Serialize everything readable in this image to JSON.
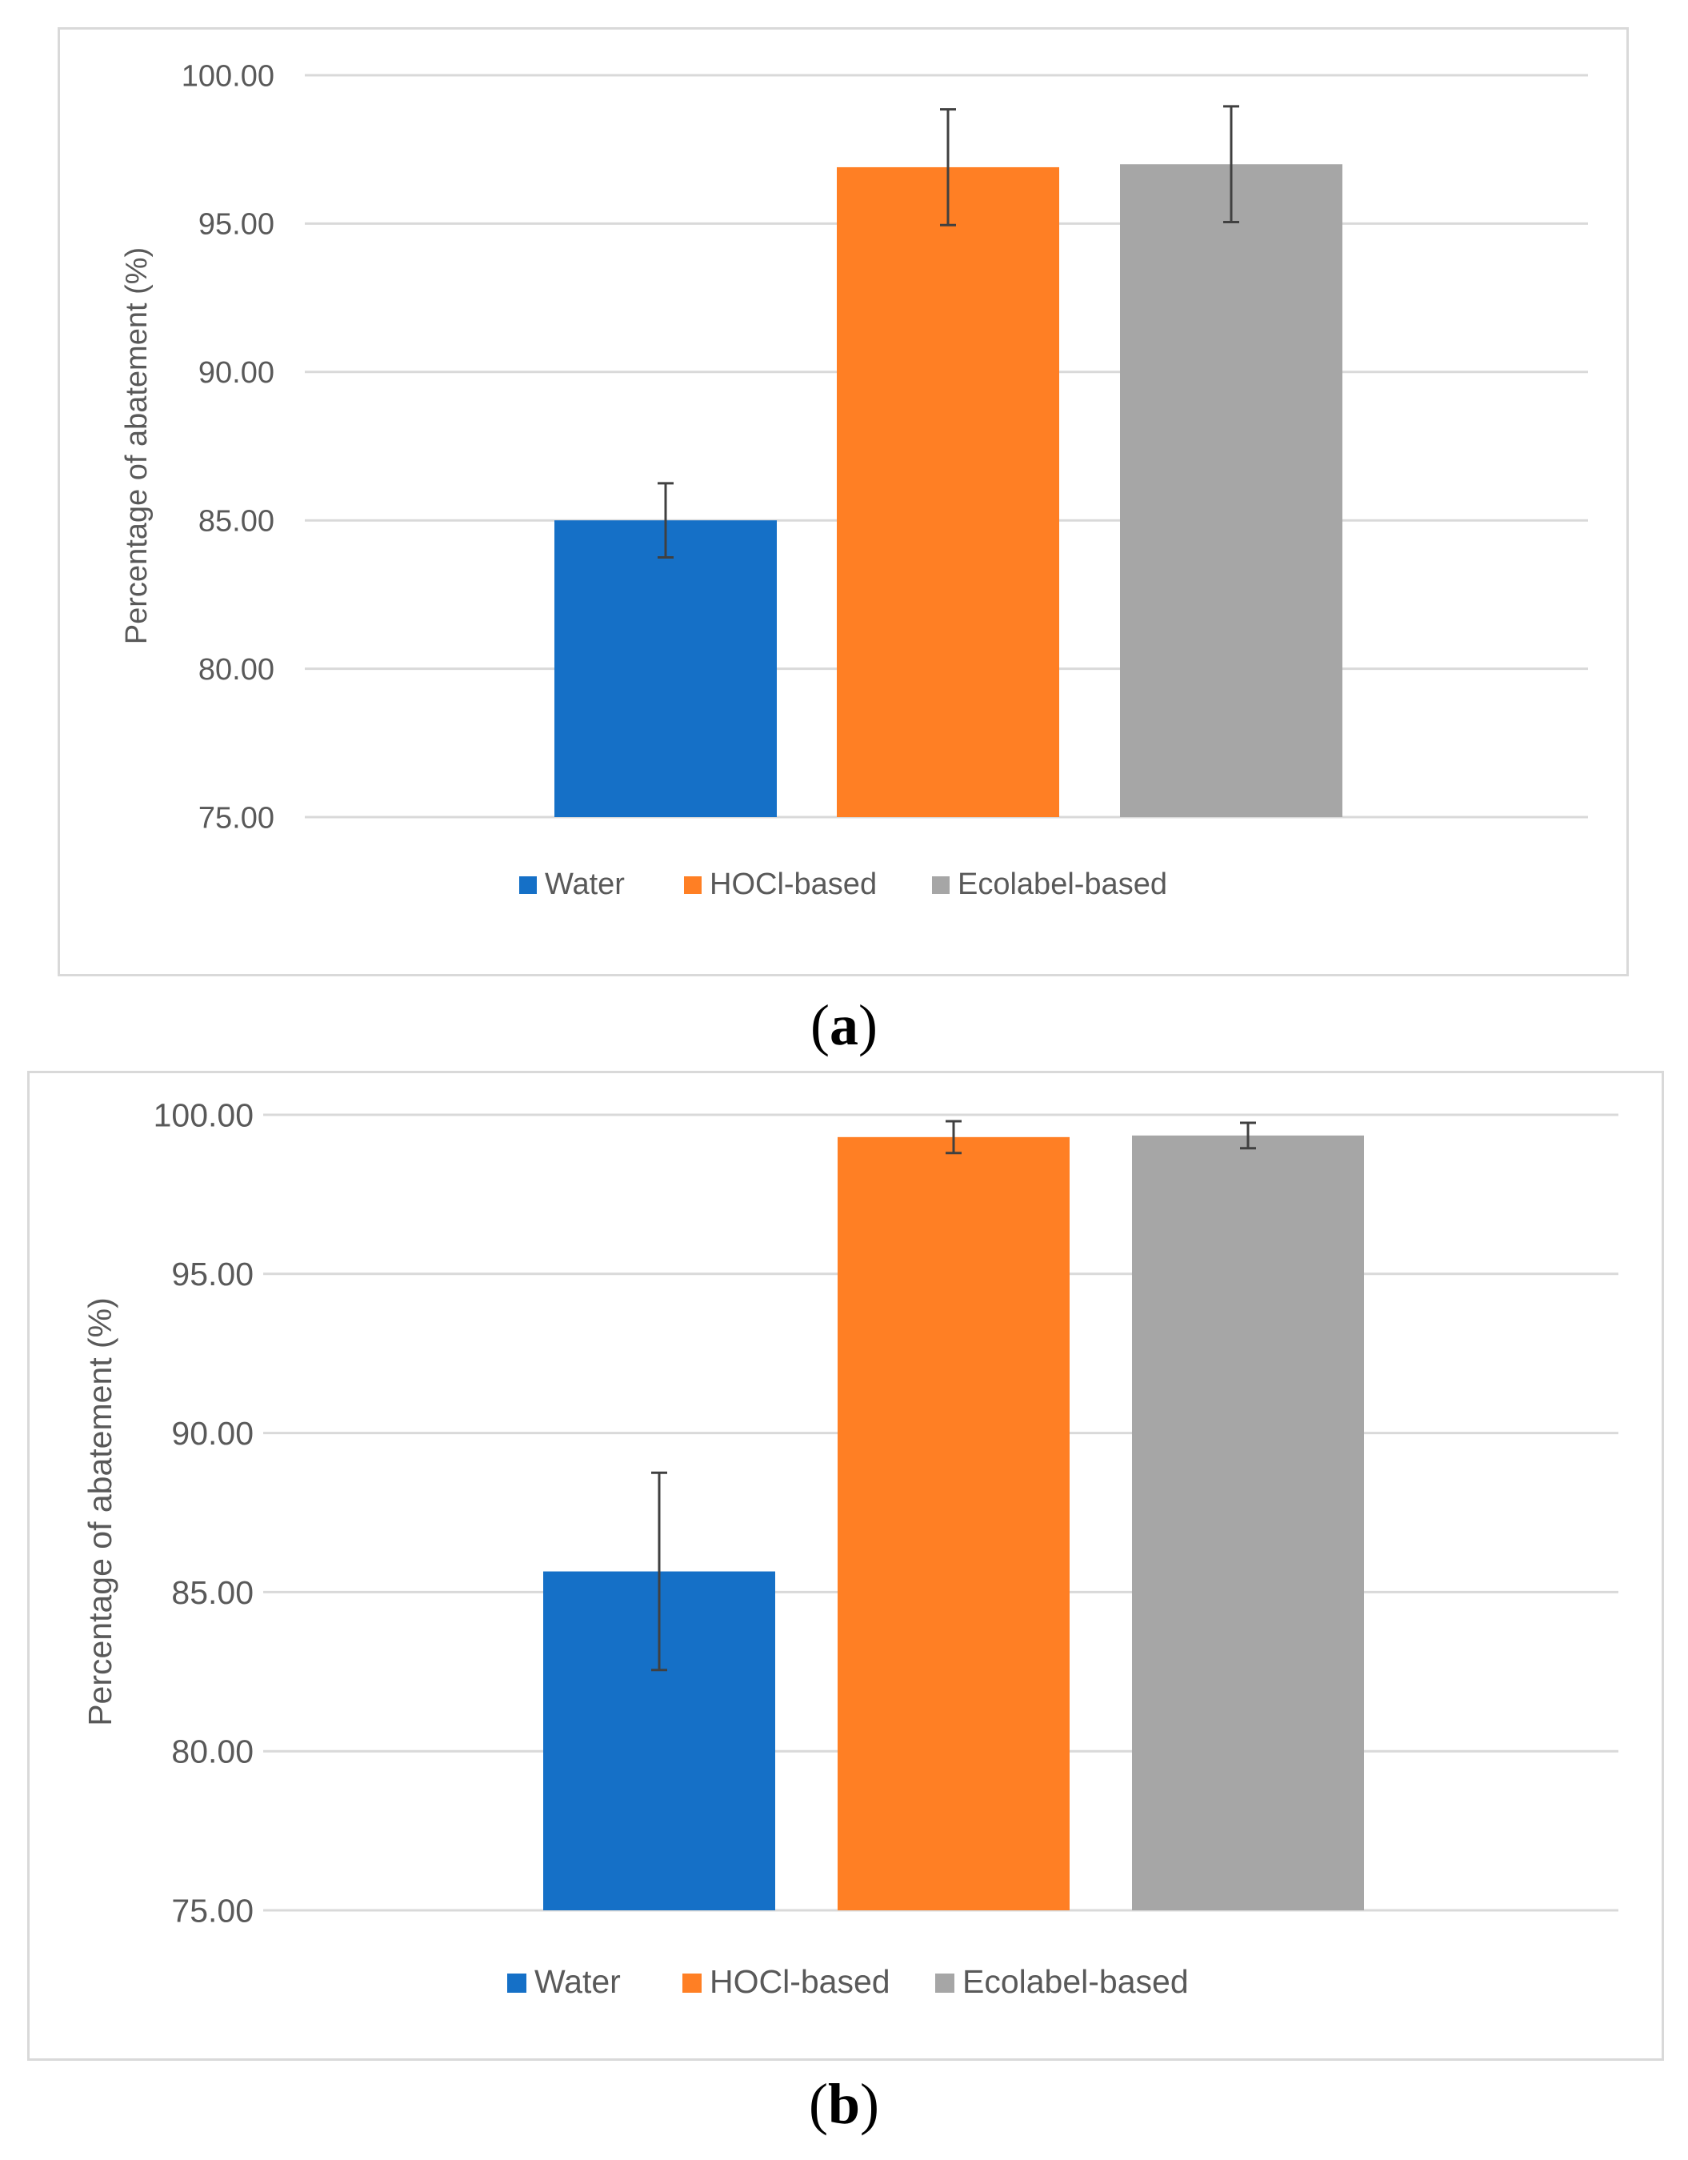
{
  "chart_data": [
    {
      "type": "bar",
      "panel": "a",
      "categories": [
        "Water",
        "HOCl-based",
        "Ecolabel-based"
      ],
      "values": [
        85.0,
        96.9,
        97.0
      ],
      "errors": [
        1.25,
        1.95,
        1.95
      ],
      "ylabel": "Percentage of abatement (%)",
      "ylim": [
        75,
        100
      ],
      "yticks": [
        "75.00",
        "80.00",
        "85.00",
        "90.00",
        "95.00",
        "100.00"
      ],
      "ytick_values": [
        75,
        80,
        85,
        90,
        95,
        100
      ],
      "legend": [
        "Water",
        "HOCl-based",
        "Ecolabel-based"
      ],
      "legend_position": "bottom",
      "grid": true,
      "colors": [
        "#1570c7",
        "#ff7f24",
        "#a6a6a6"
      ]
    },
    {
      "type": "bar",
      "panel": "b",
      "categories": [
        "Water",
        "HOCl-based",
        "Ecolabel-based"
      ],
      "values": [
        85.65,
        99.3,
        99.35
      ],
      "errors": [
        3.1,
        0.5,
        0.4
      ],
      "ylabel": "Percentage of abatement (%)",
      "ylim": [
        75,
        100
      ],
      "yticks": [
        "75.00",
        "80.00",
        "85.00",
        "90.00",
        "95.00",
        "100.00"
      ],
      "ytick_values": [
        75,
        80,
        85,
        90,
        95,
        100
      ],
      "legend": [
        "Water",
        "HOCl-based",
        "Ecolabel-based"
      ],
      "legend_position": "bottom",
      "grid": true,
      "colors": [
        "#1570c7",
        "#ff7f24",
        "#a6a6a6"
      ]
    }
  ],
  "captions": {
    "a": "a",
    "b": "b"
  },
  "colors": {
    "gridline": "#d9d9d9",
    "axis_text": "#595959",
    "error_bar": "#404040"
  }
}
